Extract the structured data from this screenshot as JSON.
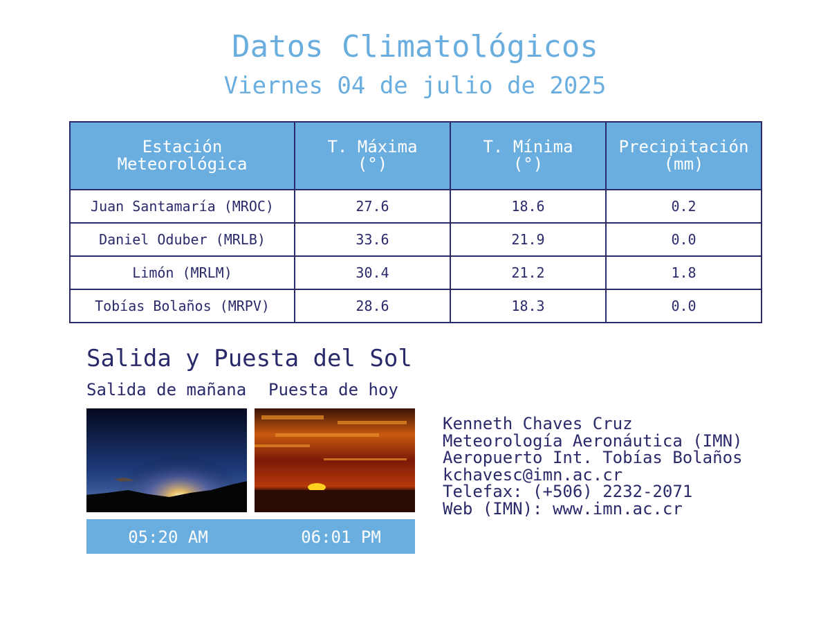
{
  "header": {
    "title": "Datos Climatológicos",
    "subtitle": "Viernes 04 de julio de 2025"
  },
  "table": {
    "headers": [
      [
        "Estación",
        "Meteorológica"
      ],
      [
        "T. Máxima",
        "(°)"
      ],
      [
        "T. Mínima",
        "(°)"
      ],
      [
        "Precipitación",
        "(mm)"
      ]
    ],
    "rows": [
      [
        "Juan Santamaría (MROC)",
        "27.6",
        "18.6",
        "0.2"
      ],
      [
        "Daniel Oduber (MRLB)",
        "33.6",
        "21.9",
        "0.0"
      ],
      [
        "Limón (MRLM)",
        "30.4",
        "21.2",
        "1.8"
      ],
      [
        "Tobías Bolaños (MRPV)",
        "28.6",
        "18.3",
        "0.0"
      ]
    ]
  },
  "sun": {
    "title": "Salida y Puesta del Sol",
    "sunrise_label": "Salida de mañana",
    "sunset_label": "Puesta de hoy",
    "sunrise_time": "05:20 AM",
    "sunset_time": "06:01 PM"
  },
  "contact": [
    "Kenneth Chaves Cruz",
    "Meteorología Aeronáutica (IMN)",
    "Aeropuerto Int. Tobías Bolaños",
    "kchavesc@imn.ac.cr",
    "Telefax: (+506) 2232-2071",
    "Web (IMN): www.imn.ac.cr"
  ]
}
